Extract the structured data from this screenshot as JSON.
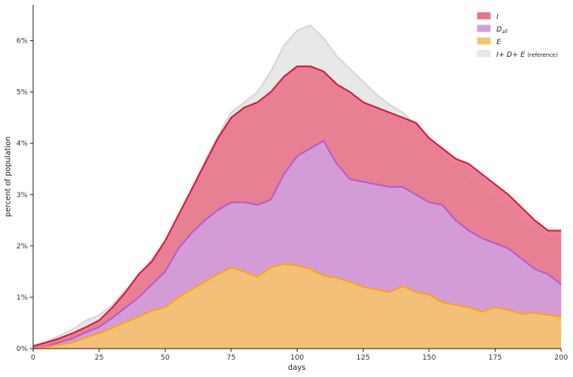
{
  "chart_data": {
    "type": "area",
    "title": "",
    "xlabel": "days",
    "ylabel": "percent of population",
    "xlim": [
      0,
      200
    ],
    "ylim": [
      0,
      6.7
    ],
    "grid": false,
    "legend_position": "top-right",
    "x_ticks": [
      {
        "value": 0,
        "label": "0"
      },
      {
        "value": 25,
        "label": "25"
      },
      {
        "value": 50,
        "label": "50"
      },
      {
        "value": 75,
        "label": "75"
      },
      {
        "value": 100,
        "label": "100"
      },
      {
        "value": 125,
        "label": "125"
      },
      {
        "value": 150,
        "label": "150"
      },
      {
        "value": 175,
        "label": "175"
      },
      {
        "value": 200,
        "label": "200"
      }
    ],
    "y_ticks": [
      {
        "value": 0,
        "label": "0%"
      },
      {
        "value": 1,
        "label": "1%"
      },
      {
        "value": 2,
        "label": "2%"
      },
      {
        "value": 3,
        "label": "3%"
      },
      {
        "value": 4,
        "label": "4%"
      },
      {
        "value": 5,
        "label": "5%"
      },
      {
        "value": 6,
        "label": "6%"
      }
    ],
    "x": [
      0,
      5,
      10,
      15,
      20,
      25,
      30,
      35,
      40,
      45,
      50,
      55,
      60,
      65,
      70,
      75,
      80,
      85,
      90,
      95,
      100,
      105,
      110,
      115,
      120,
      125,
      130,
      135,
      140,
      145,
      150,
      155,
      160,
      165,
      170,
      175,
      180,
      185,
      190,
      195,
      200
    ],
    "series": [
      {
        "name": "E",
        "fill": "#f5c46f",
        "line": "#ffa500",
        "values": [
          0.0,
          0.03,
          0.08,
          0.12,
          0.22,
          0.3,
          0.4,
          0.52,
          0.62,
          0.74,
          0.8,
          1.0,
          1.15,
          1.3,
          1.45,
          1.58,
          1.5,
          1.4,
          1.58,
          1.65,
          1.62,
          1.55,
          1.42,
          1.38,
          1.3,
          1.2,
          1.15,
          1.1,
          1.22,
          1.1,
          1.05,
          0.9,
          0.85,
          0.8,
          0.72,
          0.8,
          0.75,
          0.68,
          0.7,
          0.66,
          0.62
        ]
      },
      {
        "name": "D_all",
        "fill": "#d19ede",
        "line": "#b35ad6",
        "values": [
          0.0,
          0.05,
          0.12,
          0.2,
          0.32,
          0.42,
          0.6,
          0.8,
          1.0,
          1.25,
          1.5,
          1.95,
          2.25,
          2.5,
          2.7,
          2.85,
          2.85,
          2.8,
          2.9,
          3.4,
          3.75,
          3.9,
          4.05,
          3.6,
          3.3,
          3.25,
          3.2,
          3.15,
          3.15,
          3.0,
          2.85,
          2.8,
          2.5,
          2.3,
          2.15,
          2.05,
          1.95,
          1.75,
          1.55,
          1.45,
          1.25
        ]
      },
      {
        "name": "I",
        "fill": "#e8748a",
        "line": "#dc143c",
        "values": [
          0.05,
          0.12,
          0.2,
          0.3,
          0.42,
          0.55,
          0.8,
          1.1,
          1.45,
          1.7,
          2.1,
          2.6,
          3.1,
          3.6,
          4.1,
          4.5,
          4.7,
          4.8,
          5.0,
          5.3,
          5.5,
          5.5,
          5.4,
          5.15,
          5.0,
          4.8,
          4.7,
          4.6,
          4.5,
          4.4,
          4.1,
          3.9,
          3.7,
          3.6,
          3.4,
          3.2,
          3.0,
          2.75,
          2.5,
          2.3,
          2.3
        ]
      },
      {
        "name": "I+ D+ E",
        "fill": "#e8e8e8",
        "line": "#d6d6d6",
        "values": [
          0.05,
          0.14,
          0.25,
          0.38,
          0.55,
          0.65,
          0.85,
          1.15,
          1.4,
          1.75,
          2.1,
          2.6,
          3.1,
          3.65,
          4.15,
          4.6,
          4.8,
          5.0,
          5.4,
          5.9,
          6.2,
          6.3,
          6.05,
          5.7,
          5.45,
          5.2,
          4.95,
          4.75,
          4.6,
          4.35,
          4.1,
          3.75,
          3.55,
          3.3,
          3.05,
          2.85,
          2.65,
          2.45,
          2.3,
          2.15,
          2.1
        ]
      }
    ],
    "legend": [
      {
        "symbol": "I",
        "suffix": "",
        "color": "#e8748a"
      },
      {
        "symbol": "D",
        "suffix": "all",
        "color": "#d19ede"
      },
      {
        "symbol": "E",
        "suffix": "",
        "color": "#f5c46f"
      },
      {
        "symbol": "I+ D+ E",
        "suffix": "(reference)",
        "color": "#e8e8e8"
      }
    ]
  }
}
